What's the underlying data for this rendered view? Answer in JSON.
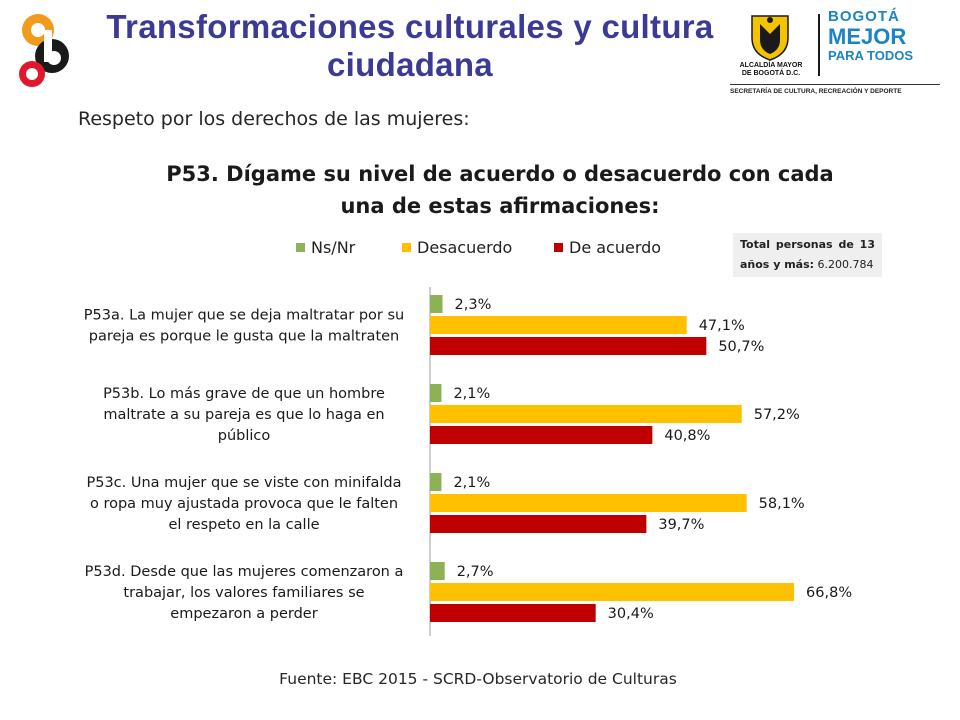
{
  "header": {
    "title_line1": "Transformaciones culturales y cultura",
    "title_line2": "ciudadana",
    "logo_right": {
      "alcaldia_line1": "ALCALDÍA MAYOR",
      "alcaldia_line2": "DE BOGOTÁ D.C.",
      "brand_line1": "BOGOTÁ",
      "brand_line2": "MEJOR",
      "brand_line3": "PARA TODOS",
      "secretaria": "SECRETARÍA DE CULTURA, RECREACIÓN Y DEPORTE"
    }
  },
  "subtitle": "Respeto por los derechos de las mujeres:",
  "total": {
    "label": "Total personas de 13 años y más:",
    "value": "6.200.784"
  },
  "source": "Fuente: EBC 2015 - SCRD-Observatorio de Culturas",
  "colors": {
    "ns": "#8db255",
    "desacuerdo": "#ffc000",
    "acuerdo": "#c00000",
    "title": "#3b3a94"
  },
  "chart_data": {
    "type": "bar",
    "orientation": "horizontal",
    "title_line1": "P53. Dígame su nivel de acuerdo o desacuerdo con cada",
    "title_line2": "una de estas afirmaciones:",
    "categories": [
      [
        "P53a. La mujer que se deja maltratar por su",
        "pareja es porque le gusta que la maltraten"
      ],
      [
        "P53b. Lo más grave de que un hombre",
        "maltrate a su pareja es que lo haga en",
        "público"
      ],
      [
        "P53c. Una mujer que se viste con minifalda",
        "o ropa muy ajustada provoca que le falten",
        "el respeto en la calle"
      ],
      [
        "P53d. Desde que las mujeres comenzaron a",
        "trabajar, los valores familiares se",
        "empezaron a perder"
      ]
    ],
    "series": [
      {
        "name": "Ns/Nr",
        "values": [
          2.3,
          2.1,
          2.1,
          2.7
        ],
        "labels": [
          "2,3%",
          "2,1%",
          "2,1%",
          "2,7%"
        ]
      },
      {
        "name": "Desacuerdo",
        "values": [
          47.1,
          57.2,
          58.1,
          66.8
        ],
        "labels": [
          "47,1%",
          "57,2%",
          "58,1%",
          "66,8%"
        ]
      },
      {
        "name": "De acuerdo",
        "values": [
          50.7,
          40.8,
          39.7,
          30.4
        ],
        "labels": [
          "50,7%",
          "40,8%",
          "39,7%",
          "30,4%"
        ]
      }
    ],
    "xlim": [
      0,
      100
    ],
    "grid": false,
    "legend_position": "top"
  }
}
